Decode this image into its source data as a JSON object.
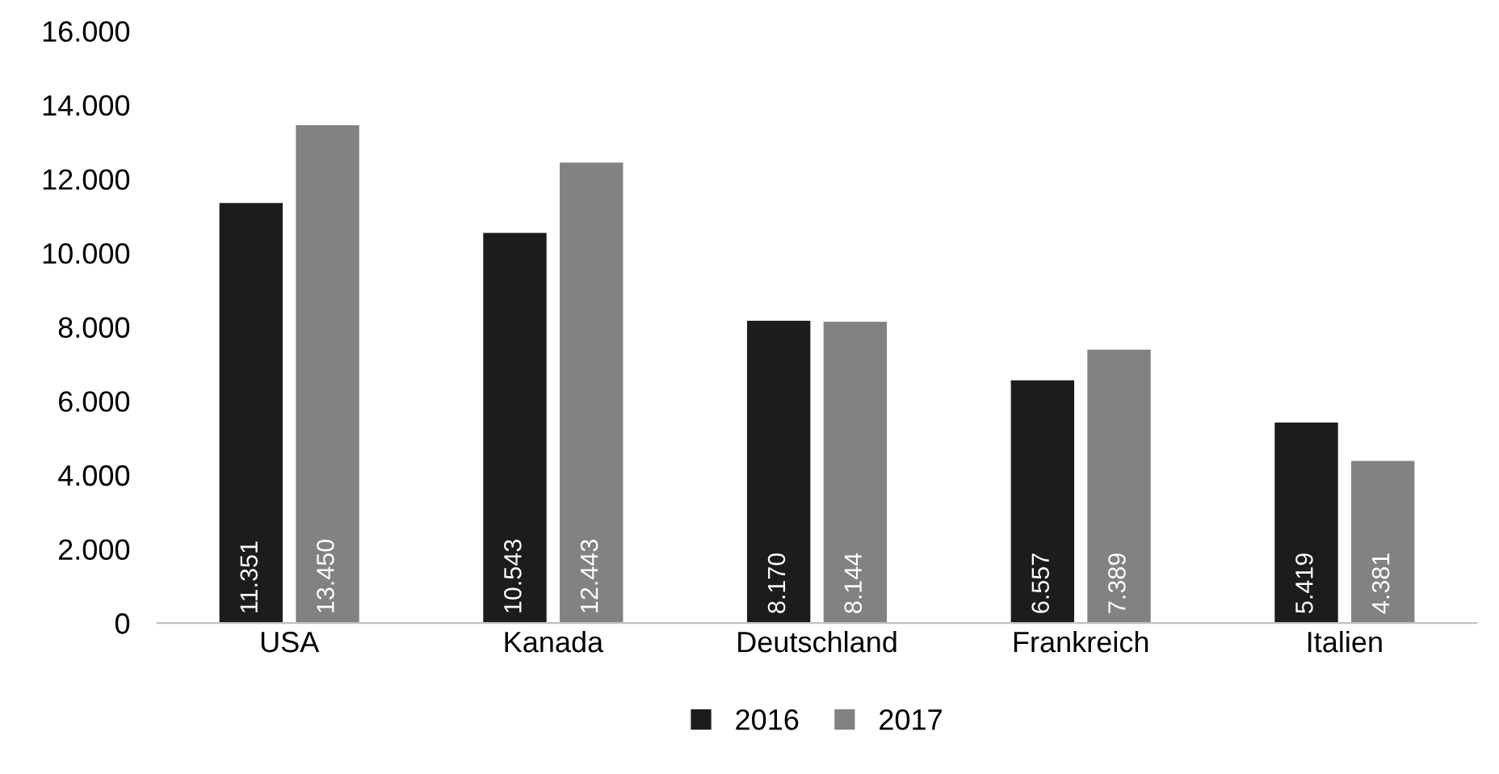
{
  "chart_data": {
    "type": "bar",
    "categories": [
      "USA",
      "Kanada",
      "Deutschland",
      "Frankreich",
      "Italien"
    ],
    "series": [
      {
        "name": "2016",
        "color": "#1c1c1c",
        "values": [
          11351,
          10543,
          8170,
          6557,
          5419
        ],
        "value_labels": [
          "11.351",
          "10.543",
          "8.170",
          "6.557",
          "5.419"
        ]
      },
      {
        "name": "2017",
        "color": "#828282",
        "values": [
          13450,
          12443,
          8144,
          7389,
          4381
        ],
        "value_labels": [
          "13.450",
          "12.443",
          "8.144",
          "7.389",
          "4.381"
        ]
      }
    ],
    "ylim": [
      0,
      16000
    ],
    "yticks": [
      {
        "value": 0,
        "label": "0"
      },
      {
        "value": 2000,
        "label": "2.000"
      },
      {
        "value": 4000,
        "label": "4.000"
      },
      {
        "value": 6000,
        "label": "6.000"
      },
      {
        "value": 8000,
        "label": "8.000"
      },
      {
        "value": 10000,
        "label": "10.000"
      },
      {
        "value": 12000,
        "label": "12.000"
      },
      {
        "value": 14000,
        "label": "14.000"
      },
      {
        "value": 16000,
        "label": "16.000"
      }
    ],
    "grid": false,
    "legend": "bottom"
  }
}
